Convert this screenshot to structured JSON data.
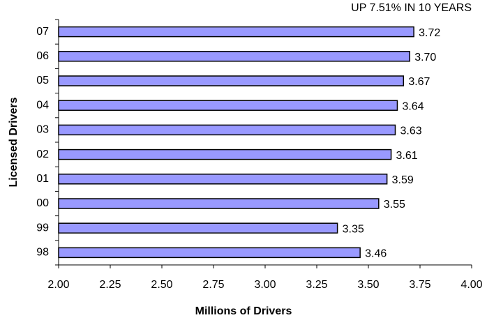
{
  "chart_data": {
    "type": "bar",
    "orientation": "horizontal",
    "annotation": "UP 7.51% IN 10 YEARS",
    "x_label": "Millions of Drivers",
    "y_label": "Licensed Drivers",
    "categories": [
      "07",
      "06",
      "05",
      "04",
      "03",
      "02",
      "01",
      "00",
      "99",
      "98"
    ],
    "values": [
      3.72,
      3.7,
      3.67,
      3.64,
      3.63,
      3.61,
      3.59,
      3.55,
      3.35,
      3.46
    ],
    "value_labels": [
      "3.72",
      "3.70",
      "3.67",
      "3.64",
      "3.63",
      "3.61",
      "3.59",
      "3.55",
      "3.35",
      "3.46"
    ],
    "color": "#9999ff",
    "xlim": [
      2,
      4
    ],
    "xticks": [
      {
        "value": 2,
        "label": "2.00"
      },
      {
        "value": 2.25,
        "label": "2.25"
      },
      {
        "value": 2.5,
        "label": "2.50"
      },
      {
        "value": 2.75,
        "label": "2.75"
      },
      {
        "value": 3,
        "label": "3.00"
      },
      {
        "value": 3.25,
        "label": "3.25"
      },
      {
        "value": 3.5,
        "label": "3.50"
      },
      {
        "value": 3.75,
        "label": "3.75"
      },
      {
        "value": 4,
        "label": "4.00"
      }
    ],
    "grid": false
  }
}
